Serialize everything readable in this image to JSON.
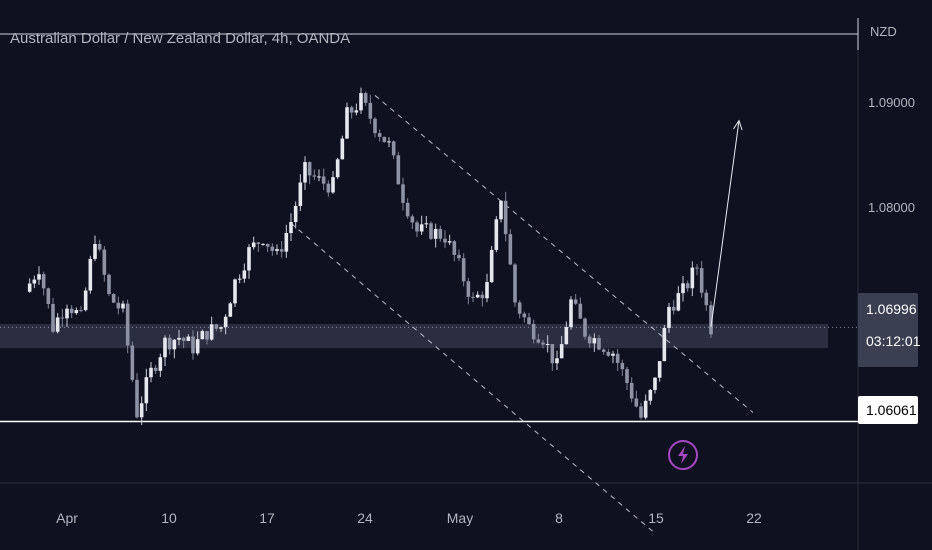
{
  "chart_data": {
    "type": "candlestick",
    "title": "Australian Dollar / New Zealand Dollar, 4h, OANDA",
    "currency": "NZD",
    "ylim": [
      1.0545,
      1.0995
    ],
    "yticks": [
      "1.09000",
      "1.08000"
    ],
    "xticks": [
      "Apr",
      "10",
      "17",
      "24",
      "May",
      "8",
      "15",
      "22"
    ],
    "last_price": "1.06996",
    "countdown": "03:12:01",
    "support_level_label": "1.06061",
    "support_level": 1.06061,
    "zone": [
      1.0679,
      1.0703
    ],
    "price_path": [
      [
        "Mar 29",
        1.0735
      ],
      [
        "Mar 30",
        1.076
      ],
      [
        "Mar 31",
        1.07
      ],
      [
        "Apr 1",
        1.0725
      ],
      [
        "Apr 2",
        1.0708
      ],
      [
        "Apr 3",
        1.079
      ],
      [
        "Apr 4",
        1.073
      ],
      [
        "Apr 5",
        1.0715
      ],
      [
        "Apr 6",
        1.0615
      ],
      [
        "Apr 7",
        1.0655
      ],
      [
        "Apr 8",
        1.0685
      ],
      [
        "Apr 9",
        1.069
      ],
      [
        "Apr 10",
        1.068
      ],
      [
        "Apr 11",
        1.0695
      ],
      [
        "Apr 12",
        1.07
      ],
      [
        "Apr 13",
        1.0745
      ],
      [
        "Apr 14",
        1.0775
      ],
      [
        "Apr 15",
        1.079
      ],
      [
        "Apr 16",
        1.077
      ],
      [
        "Apr 17",
        1.0805
      ],
      [
        "Apr 18",
        1.0855
      ],
      [
        "Apr 19",
        1.0845
      ],
      [
        "Apr 20",
        1.084
      ],
      [
        "Apr 21",
        1.091
      ],
      [
        "Apr 22",
        1.0925
      ],
      [
        "Apr 23",
        1.09
      ],
      [
        "Apr 24",
        1.088
      ],
      [
        "Apr 25",
        1.083
      ],
      [
        "Apr 26",
        1.0795
      ],
      [
        "Apr 27",
        1.0795
      ],
      [
        "Apr 28",
        1.079
      ],
      [
        "Apr 29",
        1.076
      ],
      [
        "Apr 30",
        1.0725
      ],
      [
        "May 1",
        1.074
      ],
      [
        "May 2",
        1.083
      ],
      [
        "May 3",
        1.0725
      ],
      [
        "May 4",
        1.07
      ],
      [
        "May 5",
        1.069
      ],
      [
        "May 6",
        1.066
      ],
      [
        "May 7",
        1.0725
      ],
      [
        "May 8",
        1.0695
      ],
      [
        "May 9",
        1.0685
      ],
      [
        "May 10",
        1.0675
      ],
      [
        "May 11",
        1.0645
      ],
      [
        "May 12",
        1.061
      ],
      [
        "May 13",
        1.0645
      ],
      [
        "May 14",
        1.072
      ],
      [
        "May 15",
        1.0735
      ],
      [
        "May 16",
        1.076
      ],
      [
        "May 17",
        1.07
      ]
    ],
    "projection": [
      [
        "May 17",
        1.07
      ],
      [
        "May 19",
        1.0905
      ]
    ],
    "channel_upper": [
      [
        "Apr 23",
        1.093
      ],
      [
        "May 20",
        1.0615
      ]
    ],
    "channel_lower": [
      [
        "Apr 17",
        1.0803
      ],
      [
        "May 13",
        1.0495
      ]
    ]
  }
}
